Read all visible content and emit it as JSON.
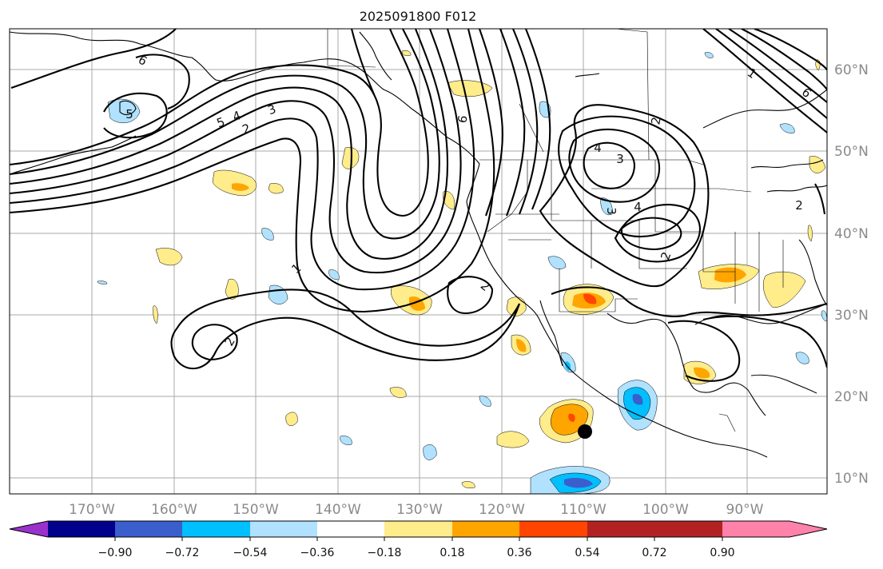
{
  "title": "2025091800 F012",
  "map": {
    "lon_labels": [
      "170°W",
      "160°W",
      "150°W",
      "140°W",
      "130°W",
      "120°W",
      "110°W",
      "100°W",
      "90°W"
    ],
    "lat_labels": [
      "60°N",
      "50°N",
      "40°N",
      "30°N",
      "20°N",
      "10°N"
    ],
    "contour_labels": [
      "6",
      "5",
      "4",
      "3",
      "2",
      "1",
      "5",
      "6",
      "2",
      "4",
      "3",
      "3",
      "4",
      "2",
      "1",
      "2",
      "2",
      "6",
      "2"
    ]
  },
  "colorbar": {
    "colors": [
      "#9932cc",
      "#00008b",
      "#3a5fcd",
      "#00bfff",
      "#b0e2ff",
      "#ffffff",
      "#ffec8b",
      "#ffa500",
      "#ff4500",
      "#b22222",
      "#ff82ab"
    ],
    "tick_labels": [
      "−0.90",
      "−0.72",
      "−0.54",
      "−0.36",
      "−0.18",
      "0.18",
      "0.36",
      "0.54",
      "0.72",
      "0.90"
    ]
  }
}
